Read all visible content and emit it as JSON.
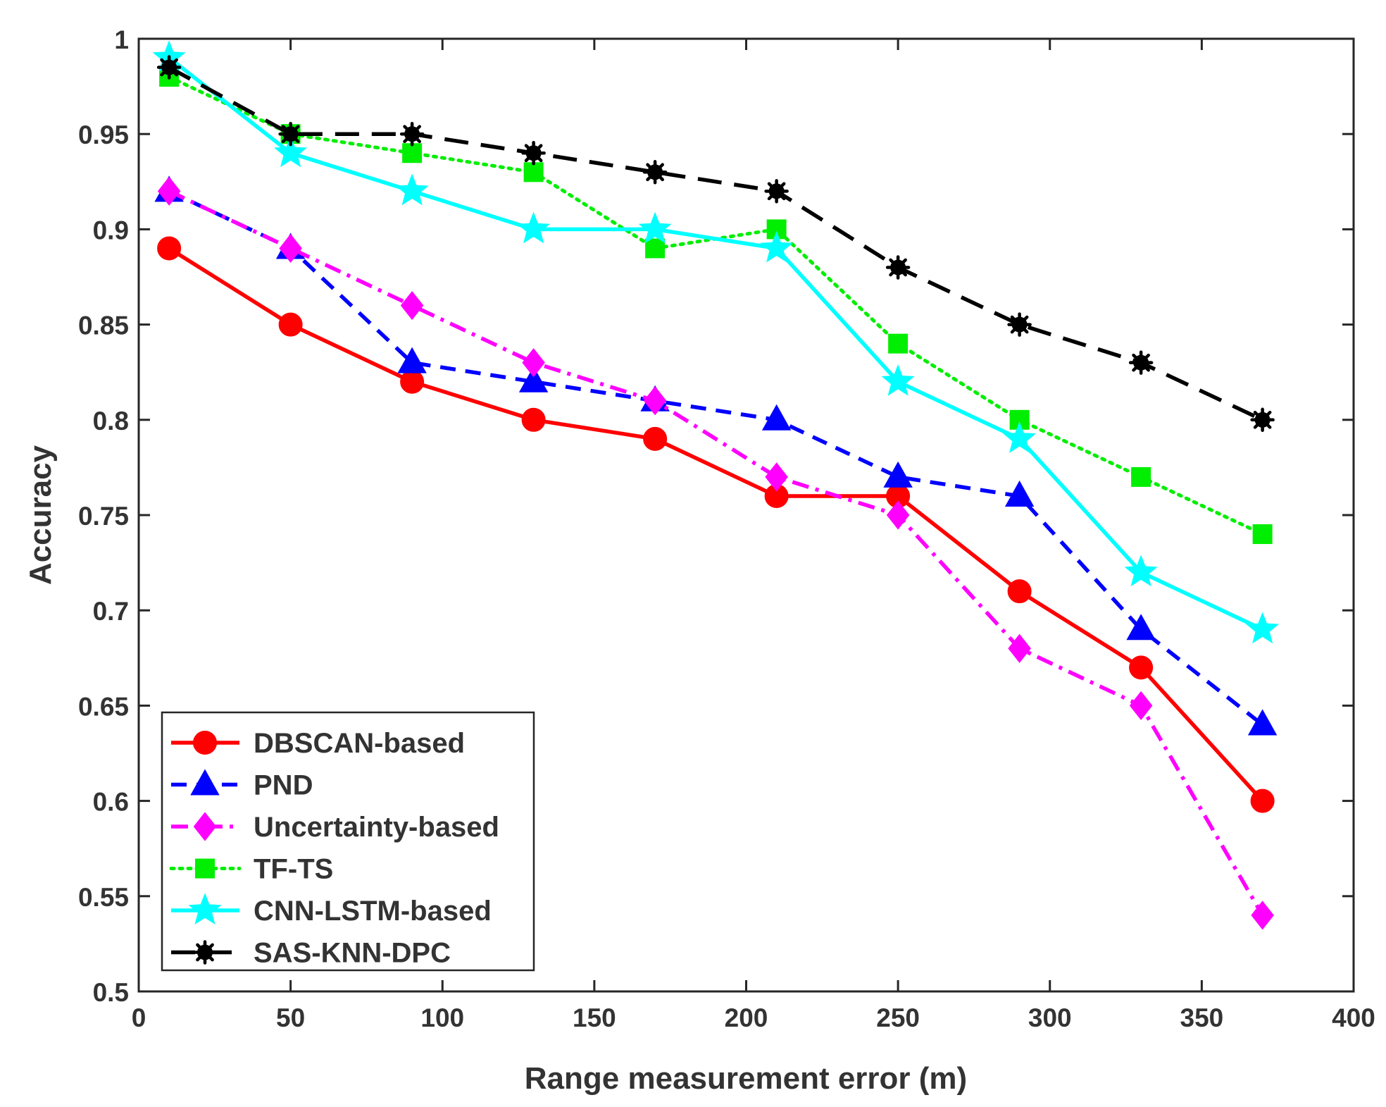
{
  "chart_data": {
    "type": "line",
    "title": "",
    "xlabel": "Range measurement error (m)",
    "ylabel": "Accuracy",
    "xlim": [
      0,
      400
    ],
    "ylim": [
      0.5,
      1
    ],
    "xticks": [
      0,
      50,
      100,
      150,
      200,
      250,
      300,
      350,
      400
    ],
    "xtick_labels": [
      "0",
      "50",
      "100",
      "150",
      "200",
      "250",
      "300",
      "350",
      "400"
    ],
    "yticks": [
      0.5,
      0.55,
      0.6,
      0.65,
      0.7,
      0.75,
      0.8,
      0.85,
      0.9,
      0.95,
      1
    ],
    "ytick_labels": [
      "0.5",
      "0.55",
      "0.6",
      "0.65",
      "0.7",
      "0.75",
      "0.8",
      "0.85",
      "0.9",
      "0.95",
      "1"
    ],
    "grid": false,
    "legend_position": "bottom-left",
    "x": [
      10,
      50,
      90,
      130,
      170,
      210,
      250,
      290,
      330,
      370
    ],
    "series": [
      {
        "name": "DBSCAN-based",
        "values": [
          0.89,
          0.85,
          0.82,
          0.8,
          0.79,
          0.76,
          0.76,
          0.71,
          0.67,
          0.6
        ],
        "color": "#ff0000",
        "dash": "solid",
        "marker": "circle"
      },
      {
        "name": "PND",
        "values": [
          0.92,
          0.89,
          0.83,
          0.82,
          0.81,
          0.8,
          0.77,
          0.76,
          0.69,
          0.64
        ],
        "color": "#0000ff",
        "dash": "dashed",
        "marker": "triangle"
      },
      {
        "name": "Uncertainty-based",
        "values": [
          0.92,
          0.89,
          0.86,
          0.83,
          0.81,
          0.77,
          0.75,
          0.68,
          0.65,
          0.54
        ],
        "color": "#ff00ff",
        "dash": "dashdot",
        "marker": "diamond"
      },
      {
        "name": "TF-TS",
        "values": [
          0.98,
          0.95,
          0.94,
          0.93,
          0.89,
          0.9,
          0.84,
          0.8,
          0.77,
          0.74
        ],
        "color": "#00ee00",
        "dash": "dotted",
        "marker": "square"
      },
      {
        "name": "CNN-LSTM-based",
        "values": [
          0.99,
          0.94,
          0.92,
          0.9,
          0.9,
          0.89,
          0.82,
          0.79,
          0.72,
          0.69
        ],
        "color": "#00ffff",
        "dash": "solid",
        "marker": "star"
      },
      {
        "name": "SAS-KNN-DPC",
        "values": [
          0.985,
          0.95,
          0.95,
          0.94,
          0.93,
          0.92,
          0.88,
          0.85,
          0.83,
          0.8
        ],
        "color": "#000000",
        "dash": "longdash",
        "marker": "asterisk"
      }
    ]
  }
}
